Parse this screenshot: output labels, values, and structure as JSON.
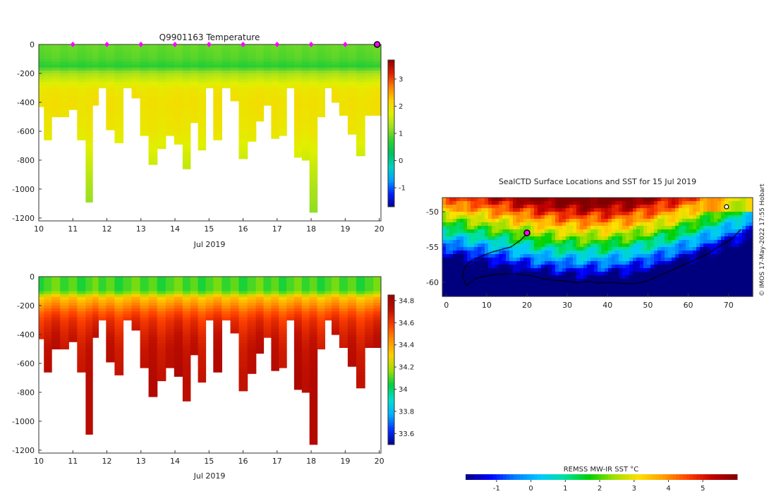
{
  "colors": {
    "temperature_scale": [
      "#00008f",
      "#0020ff",
      "#00a0ff",
      "#00d0c0",
      "#00c060",
      "#30d030",
      "#a0e020",
      "#e0f000",
      "#ffd000",
      "#ff8000",
      "#e02000",
      "#900000"
    ],
    "salinity_scale": [
      "#00008f",
      "#0030ff",
      "#00b0ff",
      "#00e0d0",
      "#00d040",
      "#a0e000",
      "#ffd000",
      "#ff9000",
      "#ff4000",
      "#c01000",
      "#a00000"
    ],
    "sst_scale": [
      "#00007f",
      "#0000ff",
      "#0080ff",
      "#00c8ff",
      "#00e0a0",
      "#00d000",
      "#a0e000",
      "#ffe000",
      "#ffa000",
      "#ff4000",
      "#c00000",
      "#800000"
    ],
    "marker": "#ff00ff",
    "track": "#000000"
  },
  "chart_data": [
    {
      "type": "heatmap",
      "title": "Q9901163  Temperature",
      "xlabel": "Jul 2019",
      "ylabel": "",
      "xlim": [
        10,
        20.05
      ],
      "ylim": [
        -1220,
        0
      ],
      "xticks": [
        "10",
        "11",
        "12",
        "13",
        "14",
        "15",
        "16",
        "17",
        "18",
        "19",
        "20"
      ],
      "yticks": [
        "0",
        "-200",
        "-400",
        "-600",
        "-800",
        "-1000",
        "-1200"
      ],
      "x": [
        10.05,
        10.25,
        10.5,
        10.75,
        11.0,
        11.25,
        11.5,
        11.65,
        11.85,
        12.1,
        12.35,
        12.6,
        12.85,
        13.1,
        13.35,
        13.6,
        13.85,
        14.1,
        14.35,
        14.55,
        14.8,
        15.0,
        15.25,
        15.5,
        15.75,
        16.0,
        16.25,
        16.5,
        16.7,
        16.95,
        17.15,
        17.4,
        17.6,
        17.85,
        18.05,
        18.3,
        18.5,
        18.7,
        18.95,
        19.2,
        19.45,
        19.7,
        19.95
      ],
      "max_depth": [
        430,
        660,
        500,
        500,
        450,
        660,
        1090,
        420,
        300,
        590,
        680,
        300,
        370,
        630,
        830,
        720,
        630,
        690,
        860,
        540,
        730,
        300,
        660,
        300,
        390,
        790,
        670,
        530,
        420,
        650,
        630,
        300,
        780,
        800,
        1160,
        500,
        300,
        400,
        490,
        620,
        770,
        490,
        490
      ],
      "profile_depth": [
        0,
        100,
        150,
        200,
        300,
        400,
        600,
        800,
        1000,
        1200
      ],
      "profile_temperature": [
        1.0,
        0.9,
        0.7,
        1.3,
        1.9,
        2.0,
        1.9,
        1.6,
        1.3,
        1.1
      ],
      "colorbar_ticks": [
        "3",
        "2",
        "1",
        "0",
        "-1"
      ],
      "clim": [
        -1.7,
        3.7
      ],
      "markers_x": [
        11,
        12,
        13,
        14,
        15,
        16,
        17,
        18,
        19
      ],
      "end_marker_x": 20,
      "end_marker_depth": 0
    },
    {
      "type": "heatmap",
      "title": "",
      "xlabel": "Jul 2019",
      "ylabel": "",
      "xlim": [
        10,
        20.05
      ],
      "ylim": [
        -1220,
        0
      ],
      "xticks": [
        "10",
        "11",
        "12",
        "13",
        "14",
        "15",
        "16",
        "17",
        "18",
        "19",
        "20"
      ],
      "yticks": [
        "0",
        "-200",
        "-400",
        "-600",
        "-800",
        "-1000",
        "-1200"
      ],
      "profile_depth": [
        0,
        100,
        150,
        200,
        250,
        300,
        400,
        500,
        700,
        1200
      ],
      "profile_salinity": [
        34.1,
        34.1,
        34.35,
        34.45,
        34.55,
        34.62,
        34.68,
        34.72,
        34.75,
        34.75
      ],
      "colorbar_ticks": [
        "34.8",
        "34.6",
        "34.4",
        "34.2",
        "34",
        "33.8",
        "33.6"
      ],
      "clim": [
        33.5,
        34.85
      ]
    },
    {
      "type": "heatmap",
      "title": "SealCTD Surface Locations and SST for 15 Jul 2019",
      "xlabel": "",
      "ylabel": "",
      "xlim": [
        -1,
        76
      ],
      "ylim": [
        -62,
        -48
      ],
      "xticks": [
        "0",
        "10",
        "20",
        "30",
        "40",
        "50",
        "60",
        "70"
      ],
      "yticks": [
        "-50",
        "-55",
        "-60"
      ],
      "track_lon": [
        73,
        71,
        68,
        65,
        61,
        57,
        53,
        50,
        47,
        44,
        41,
        38,
        35,
        32,
        29,
        26,
        24,
        22,
        20,
        17,
        15,
        12,
        9,
        7,
        6,
        5,
        4,
        4.5,
        6,
        8,
        10,
        12,
        14,
        16,
        17,
        18.5,
        19.5,
        20
      ],
      "track_lat": [
        -52.5,
        -53.8,
        -54.8,
        -55.9,
        -57.0,
        -58.0,
        -59.0,
        -59.8,
        -60.2,
        -60.2,
        -60.0,
        -60.1,
        -59.9,
        -60.0,
        -59.8,
        -59.7,
        -59.5,
        -59.2,
        -59.0,
        -58.8,
        -58.8,
        -58.9,
        -59.2,
        -59.5,
        -60.0,
        -60.5,
        -59.2,
        -58.0,
        -57.0,
        -56.5,
        -56.0,
        -55.6,
        -55.3,
        -55.0,
        -54.6,
        -54.0,
        -53.4,
        -53.0
      ],
      "start_marker": {
        "lon": 20,
        "lat": -53
      },
      "cluster_marker": {
        "lon": 69.5,
        "lat": -49.3
      },
      "colorbar_label": "REMSS MW-IR SST °C",
      "colorbar_ticks": [
        "-1",
        "0",
        "1",
        "2",
        "3",
        "4",
        "5"
      ],
      "clim": [
        -1.9,
        6
      ],
      "watermark": "© IMOS 17-May-2022 17:55 Hobart"
    }
  ]
}
